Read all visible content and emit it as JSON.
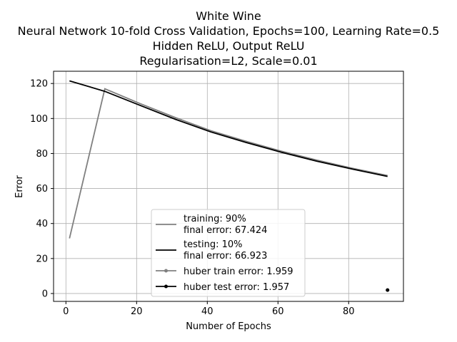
{
  "chart_data": {
    "type": "line",
    "title_lines": [
      "White Wine",
      "Neural Network 10-fold Cross Validation, Epochs=100, Learning Rate=0.5",
      "Hidden ReLU, Output ReLU",
      "Regularisation=L2, Scale=0.01"
    ],
    "xlabel": "Number of Epochs",
    "ylabel": "Error",
    "xlim": [
      -3.5,
      95.5
    ],
    "ylim": [
      -4.5,
      127
    ],
    "xticks": [
      0,
      20,
      40,
      60,
      80
    ],
    "yticks": [
      0,
      20,
      40,
      60,
      80,
      100,
      120
    ],
    "grid": true,
    "legend_position": "lower-center",
    "series": [
      {
        "name": "training: 90%",
        "legend_line2": "final error: 67.424",
        "color": "#808080",
        "style": "line",
        "x": [
          1,
          11,
          21,
          31,
          41,
          51,
          61,
          71,
          81,
          91
        ],
        "y": [
          31.5,
          117,
          108.5,
          100.5,
          93,
          87,
          81.3,
          76.2,
          71.6,
          67.4
        ]
      },
      {
        "name": "testing: 10%",
        "legend_line2": "final error: 66.923",
        "color": "#000000",
        "style": "line",
        "x": [
          1,
          11,
          21,
          31,
          41,
          51,
          61,
          71,
          81,
          91
        ],
        "y": [
          121.5,
          115.5,
          107.5,
          99.5,
          92.3,
          86.3,
          80.7,
          75.6,
          71.1,
          66.9
        ]
      },
      {
        "name": "huber train error: 1.959",
        "color": "#808080",
        "style": "marker",
        "x": [
          91
        ],
        "y": [
          1.959
        ]
      },
      {
        "name": "huber test error: 1.957",
        "color": "#000000",
        "style": "marker",
        "x": [
          91
        ],
        "y": [
          1.957
        ]
      }
    ]
  }
}
